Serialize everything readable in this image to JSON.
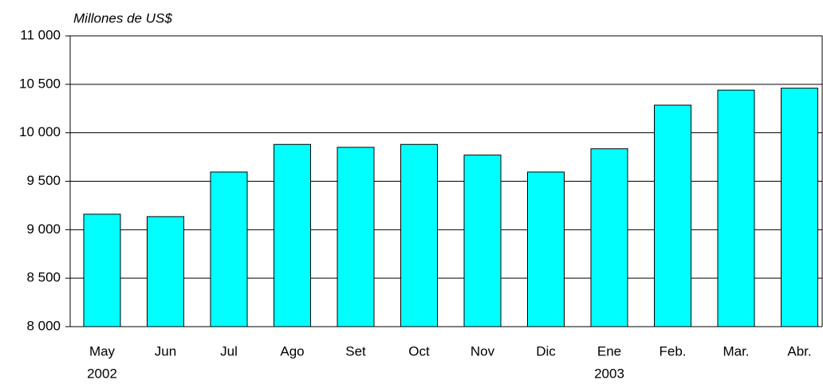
{
  "chart_data": {
    "type": "bar",
    "y_label": "Millones de US$",
    "categories": [
      "May",
      "Jun",
      "Jul",
      "Ago",
      "Set",
      "Oct",
      "Nov",
      "Dic",
      "Ene",
      "Feb.",
      "Mar.",
      "Abr."
    ],
    "category_groups": [
      "2002",
      null,
      null,
      null,
      null,
      null,
      null,
      null,
      "2003",
      null,
      null,
      null
    ],
    "values": [
      9160,
      9135,
      9595,
      9880,
      9850,
      9880,
      9770,
      9595,
      9835,
      10285,
      10440,
      10460
    ],
    "color": "#00ffff",
    "ylim": [
      8000,
      11000
    ],
    "yticks": [
      {
        "value": 8000,
        "label": "8 000"
      },
      {
        "value": 8500,
        "label": "8 500"
      },
      {
        "value": 9000,
        "label": "9 000"
      },
      {
        "value": 9500,
        "label": "9 500"
      },
      {
        "value": 10000,
        "label": "10 000"
      },
      {
        "value": 10500,
        "label": "10 500"
      },
      {
        "value": 11000,
        "label": "11 000"
      }
    ],
    "grid": true
  }
}
